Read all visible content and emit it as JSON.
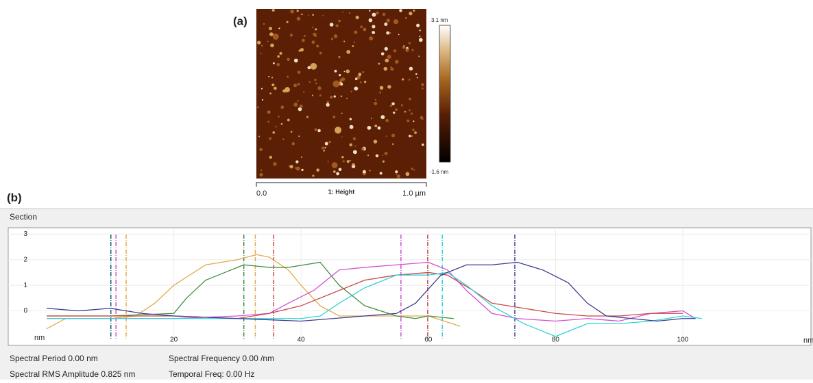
{
  "panel_a": {
    "label": "(a)",
    "colorbar_max": "3.1 nm",
    "colorbar_min": "-1.6 nm",
    "axis_start": "0.0",
    "axis_title": "1: Height",
    "axis_end": "1.0 µm"
  },
  "chart_data": {
    "type": "line",
    "panel_label": "(b)",
    "title": "Section",
    "ylabel": "nm",
    "xlabel": "nm",
    "xlim": [
      0,
      120
    ],
    "ylim": [
      -1.35,
      3.25
    ],
    "xticks": [
      20,
      40,
      60,
      80,
      100
    ],
    "yticks": [
      3,
      2,
      1,
      0
    ],
    "grid": true,
    "cursors": [
      {
        "x": 10.1,
        "color": "#0b5c6b"
      },
      {
        "x": 10.9,
        "color": "#d24fd2"
      },
      {
        "x": 12.5,
        "color": "#e3a94a"
      },
      {
        "x": 31.0,
        "color": "#3f8f3f"
      },
      {
        "x": 32.8,
        "color": "#e3a94a"
      },
      {
        "x": 35.7,
        "color": "#c84848"
      },
      {
        "x": 55.7,
        "color": "#d24fd2"
      },
      {
        "x": 59.9,
        "color": "#c84848"
      },
      {
        "x": 62.2,
        "color": "#2fd3d8"
      },
      {
        "x": 73.6,
        "color": "#3b3b8f"
      }
    ],
    "series": [
      {
        "color": "#e3a94a",
        "x": [
          0,
          3,
          10,
          14,
          17,
          20,
          25,
          30,
          33,
          35,
          38,
          40,
          43,
          46,
          55,
          60,
          65
        ],
        "values": [
          -0.7,
          -0.3,
          -0.3,
          -0.2,
          0.3,
          1.0,
          1.8,
          2.0,
          2.2,
          2.1,
          1.6,
          1.0,
          0.2,
          -0.2,
          -0.2,
          -0.2,
          -0.6
        ]
      },
      {
        "color": "#3f8f3f",
        "x": [
          0,
          10,
          20,
          22,
          25,
          28,
          31,
          35,
          38,
          43,
          46,
          50,
          55,
          58,
          60,
          64
        ],
        "values": [
          -0.2,
          -0.2,
          -0.1,
          0.5,
          1.2,
          1.5,
          1.8,
          1.7,
          1.7,
          1.9,
          1.0,
          0.2,
          -0.2,
          -0.3,
          -0.2,
          -0.3
        ]
      },
      {
        "color": "#d24fd2",
        "x": [
          0,
          20,
          30,
          35,
          38,
          42,
          46,
          50,
          55,
          60,
          63,
          66,
          70,
          74,
          80,
          85,
          90,
          95,
          100,
          102
        ],
        "values": [
          -0.3,
          -0.3,
          -0.2,
          -0.1,
          0.3,
          0.8,
          1.6,
          1.7,
          1.8,
          1.9,
          1.6,
          0.8,
          -0.1,
          -0.3,
          -0.4,
          -0.3,
          -0.4,
          -0.1,
          0.0,
          -0.3
        ]
      },
      {
        "color": "#c84848",
        "x": [
          0,
          20,
          30,
          35,
          40,
          45,
          50,
          55,
          60,
          63,
          67,
          70,
          75,
          80,
          85,
          90,
          95,
          100
        ],
        "values": [
          -0.2,
          -0.2,
          -0.3,
          -0.1,
          0.2,
          0.7,
          1.2,
          1.4,
          1.5,
          1.4,
          0.8,
          0.3,
          0.1,
          -0.1,
          -0.2,
          -0.2,
          -0.1,
          -0.1
        ]
      },
      {
        "color": "#2fd3d8",
        "x": [
          0,
          20,
          30,
          40,
          43,
          46,
          50,
          55,
          60,
          63,
          66,
          70,
          75,
          78,
          80,
          85,
          90,
          95,
          100,
          103
        ],
        "values": [
          -0.3,
          -0.3,
          -0.3,
          -0.3,
          -0.2,
          0.3,
          0.9,
          1.4,
          1.4,
          1.5,
          1.0,
          0.2,
          -0.5,
          -0.8,
          -1.0,
          -0.5,
          -0.5,
          -0.4,
          -0.2,
          -0.3
        ]
      },
      {
        "color": "#3b3b8f",
        "x": [
          0,
          5,
          10,
          15,
          20,
          30,
          40,
          45,
          50,
          55,
          58,
          62,
          66,
          70,
          74,
          78,
          82,
          85,
          88,
          92,
          96,
          100,
          102
        ],
        "values": [
          0.1,
          0.0,
          0.1,
          -0.1,
          -0.2,
          -0.3,
          -0.4,
          -0.3,
          -0.2,
          -0.1,
          0.3,
          1.4,
          1.8,
          1.8,
          1.9,
          1.6,
          1.1,
          0.3,
          -0.2,
          -0.3,
          -0.4,
          -0.3,
          -0.3
        ]
      }
    ]
  },
  "footer": [
    "Spectral Period 0.00 nm",
    "Spectral Frequency 0.00 /nm",
    "Spectral RMS Amplitude 0.825 nm",
    "Temporal Freq: 0.00 Hz"
  ]
}
